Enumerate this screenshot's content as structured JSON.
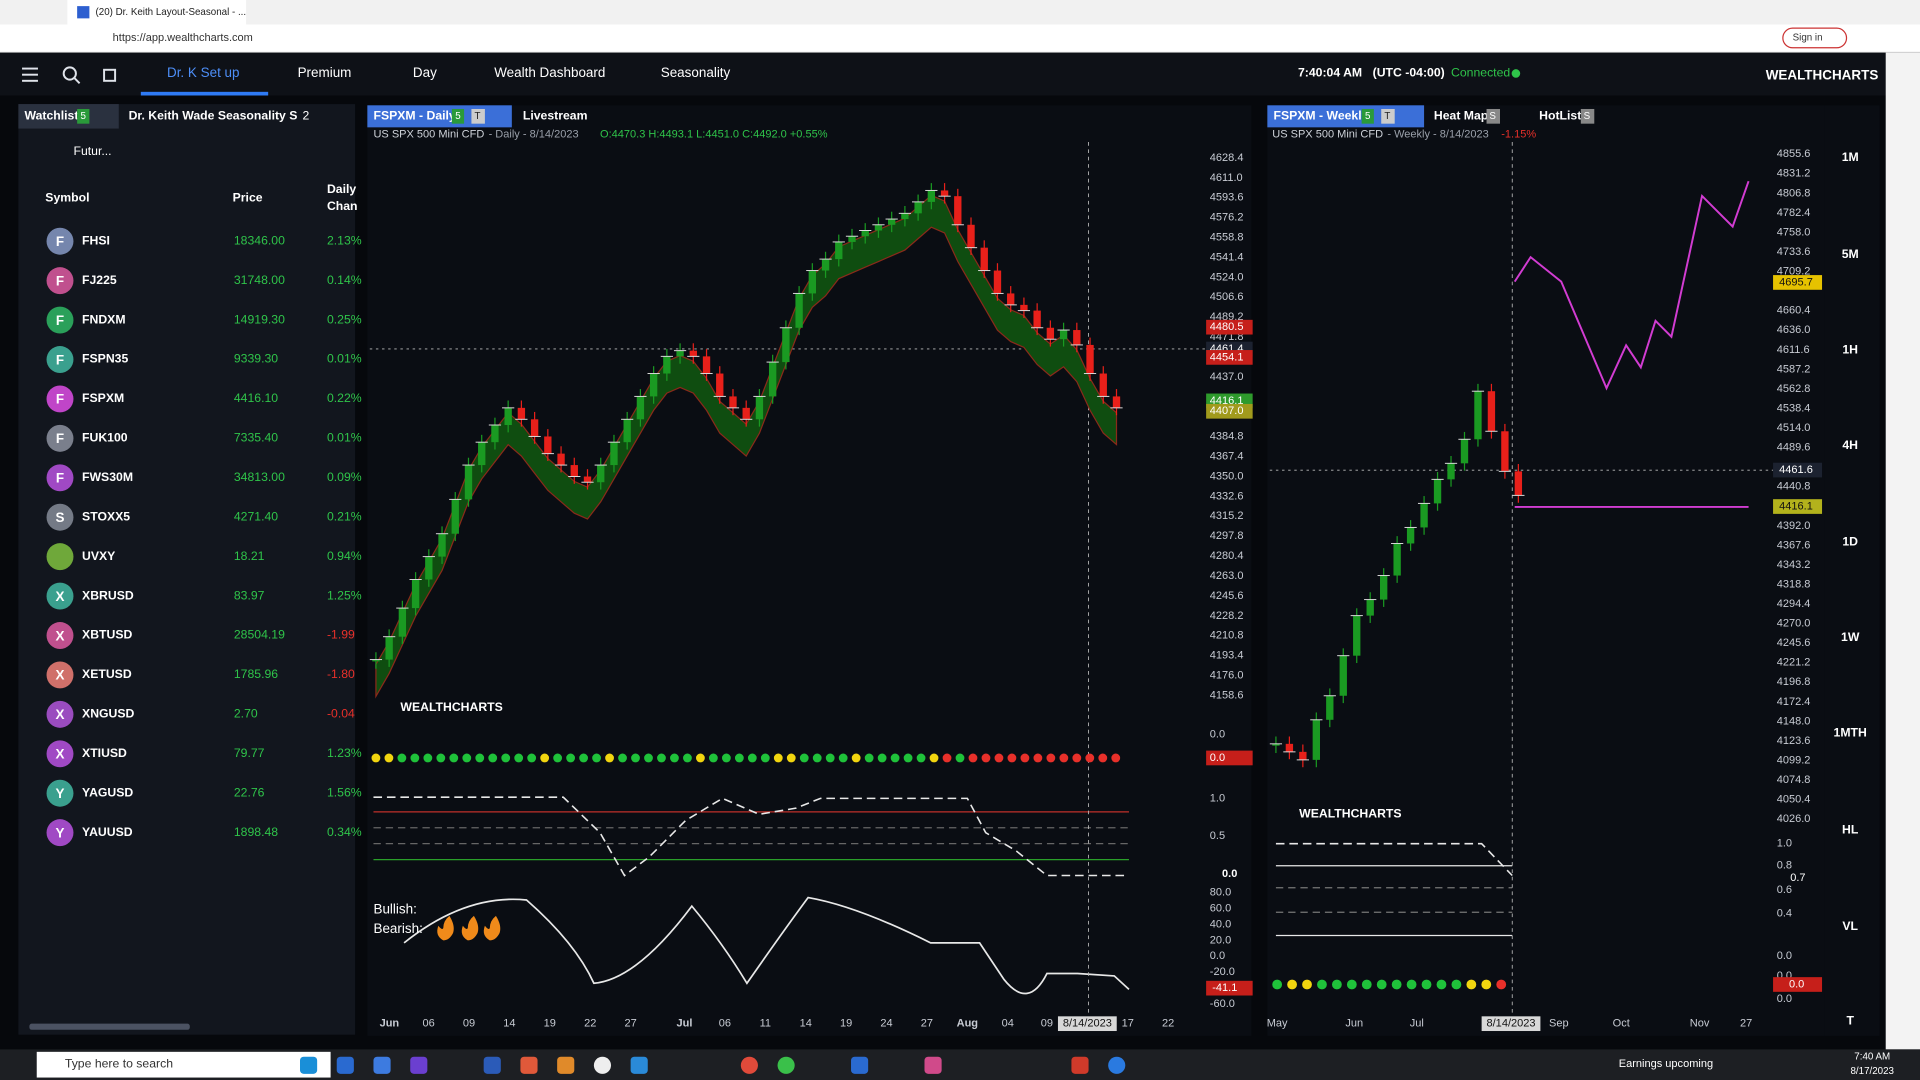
{
  "browser": {
    "tab_title": "(20) Dr. Keith Layout-Seasonal - ...",
    "url": "https://app.wealthcharts.com",
    "sign_in": "Sign in"
  },
  "nav": {
    "items": [
      "Dr. K Set up",
      "Premium",
      "Day",
      "Wealth Dashboard",
      "Seasonality"
    ],
    "time": "7:40:04 AM",
    "timezone": "(UTC -04:00)",
    "status": "Connected",
    "brand": "WEALTHCHARTS"
  },
  "watchlist": {
    "tab": "Watchlist",
    "tab_count": "5",
    "layout_name": "Dr. Keith Wade Seasonality S",
    "layout_count": "2",
    "filter": "Futur...",
    "columns": [
      "Symbol",
      "Price"
    ],
    "change_header": [
      "Daily",
      "Chan"
    ],
    "rows": [
      {
        "icon": "F",
        "icon_color": "#7586ad",
        "symbol": "FHSI",
        "price": "18346.00",
        "change": "2.13%"
      },
      {
        "icon": "F",
        "icon_color": "#c0508e",
        "symbol": "FJ225",
        "price": "31748.00",
        "change": "0.14%"
      },
      {
        "icon": "F",
        "icon_color": "#2aa05a",
        "symbol": "FNDXM",
        "price": "14919.30",
        "change": "0.25%"
      },
      {
        "icon": "F",
        "icon_color": "#3aa08e",
        "symbol": "FSPN35",
        "price": "9339.30",
        "change": "0.01%"
      },
      {
        "icon": "F",
        "icon_color": "#c045c8",
        "symbol": "FSPXM",
        "price": "4416.10",
        "change": "0.22%"
      },
      {
        "icon": "F",
        "icon_color": "#7a7f8c",
        "symbol": "FUK100",
        "price": "7335.40",
        "change": "0.01%"
      },
      {
        "icon": "F",
        "icon_color": "#a049c4",
        "symbol": "FWS30M",
        "price": "34813.00",
        "change": "0.09%"
      },
      {
        "icon": "S",
        "icon_color": "#747a86",
        "symbol": "STOXX5",
        "price": "4271.40",
        "change": "0.21%"
      },
      {
        "icon_color": "#6fa83a",
        "symbol": "UVXY",
        "price": "18.21",
        "change": "0.94%"
      },
      {
        "icon": "X",
        "icon_color": "#3aa08e",
        "symbol": "XBRUSD",
        "price": "83.97",
        "change": "1.25%"
      },
      {
        "icon": "X",
        "icon_color": "#c0508e",
        "symbol": "XBTUSD",
        "price": "28504.19",
        "change": "-1.99"
      },
      {
        "icon": "X",
        "icon_color": "#d0706a",
        "symbol": "XETUSD",
        "price": "1785.96",
        "change": "-1.80"
      },
      {
        "icon": "X",
        "icon_color": "#9a4cbf",
        "symbol": "XNGUSD",
        "price": "2.70",
        "change": "-0.04"
      },
      {
        "icon": "X",
        "icon_color": "#a049c4",
        "symbol": "XTIUSD",
        "price": "79.77",
        "change": "1.23%"
      },
      {
        "icon": "Y",
        "icon_color": "#3aa08e",
        "symbol": "YAGUSD",
        "price": "22.76",
        "change": "1.56%"
      },
      {
        "icon": "Y",
        "icon_color": "#a049c4",
        "symbol": "YAUUSD",
        "price": "1898.48",
        "change": "0.34%"
      }
    ]
  },
  "dot_colors": {
    "y": "#f2d50f",
    "g": "#1fc23a",
    "r": "#e8302a"
  },
  "left_chart": {
    "tab": "FSPXM - Daily",
    "tab_count": "5",
    "tab_t": "T",
    "tab2": "Livestream",
    "instrument": "US SPX 500 Mini CFD",
    "info": "- Daily - 8/14/2023",
    "ohlc": "O:4470.3 H:4493.1 L:4451.0 C:4492.0 +0.55%",
    "price_labels": [
      "4628.4",
      "4611.0",
      "4593.6",
      "4576.2",
      "4558.8",
      "4541.4",
      "4524.0",
      "4506.6",
      "4489.2",
      "4471.8",
      "4437.0",
      "4384.8",
      "4367.4",
      "4350.0",
      "4332.6",
      "4315.2",
      "4297.8",
      "4280.4",
      "4263.0",
      "4245.6",
      "4228.2",
      "4210.8",
      "4193.4",
      "4176.0",
      "4158.6"
    ],
    "price_tags": [
      {
        "label": "4480.5",
        "color": "#c61f1a"
      },
      {
        "label": "4461.4",
        "color": "#1c2230"
      },
      {
        "label": "4454.1",
        "color": "#c61f1a"
      },
      {
        "label": "4416.1",
        "color": "#2e9a2c"
      },
      {
        "label": "4407.0",
        "color": "#a19a1c"
      }
    ],
    "x_labels": [
      "Jun",
      "06",
      "09",
      "14",
      "19",
      "22",
      "27",
      "Jul",
      "06",
      "11",
      "14",
      "19",
      "24",
      "27",
      "Aug",
      "04",
      "09",
      "8/14/2023",
      "17",
      "22"
    ],
    "closes": [
      4190,
      4210,
      4235,
      4260,
      4280,
      4300,
      4330,
      4360,
      4380,
      4395,
      4410,
      4400,
      4385,
      4370,
      4360,
      4350,
      4345,
      4360,
      4380,
      4400,
      4420,
      4440,
      4455,
      4460,
      4455,
      4440,
      4420,
      4410,
      4400,
      4420,
      4450,
      4480,
      4510,
      4530,
      4540,
      4555,
      4560,
      4565,
      4570,
      4575,
      4580,
      4590,
      4600,
      4595,
      4570,
      4550,
      4530,
      4510,
      4500,
      4495,
      4480,
      4470,
      4478,
      4465,
      4440,
      4420,
      4410
    ],
    "watermark": "WEALTHCHARTS",
    "dots": "yygggggggggggyggggyggggggygggggyyggggygggggyrgrrrrrrrrrrrr",
    "pane1_label": "0.0",
    "pane1_tag": "0.0",
    "pane2_labels": [
      "1.0",
      "0.5"
    ],
    "pane2_tag": "0.0",
    "pane3_labels": [
      "80.0",
      "60.0",
      "40.0",
      "20.0",
      "0.0",
      "-20.0",
      "-60.0"
    ],
    "pane3_tag": "-41.1",
    "bullish": "Bullish:",
    "bearish": "Bearish:"
  },
  "right_chart": {
    "tab": "FSPXM - Weekly",
    "tab_count": "5",
    "tab_t": "T",
    "tab2": "Heat Map",
    "tab2_count": "S",
    "tab3": "HotList",
    "tab3_count": "S",
    "instrument": "US SPX 500 Mini CFD",
    "info": "- Weekly - 8/14/2023",
    "change": "-1.15%",
    "price_labels": [
      "4855.6",
      "4831.2",
      "4806.8",
      "4782.4",
      "4758.0",
      "4733.6",
      "4709.2",
      "4660.4",
      "4636.0",
      "4611.6",
      "4587.2",
      "4562.8",
      "4538.4",
      "4514.0",
      "4489.6",
      "4440.8",
      "4392.0",
      "4367.6",
      "4343.2",
      "4318.8",
      "4294.4",
      "4270.0",
      "4245.6",
      "4221.2",
      "4196.8",
      "4172.4",
      "4148.0",
      "4123.6",
      "4099.2",
      "4074.8",
      "4050.4",
      "4026.0"
    ],
    "price_tags": [
      {
        "label": "4695.7",
        "color": "#e6c200"
      },
      {
        "label": "4461.6",
        "color": "#1c2230"
      },
      {
        "label": "4416.1",
        "color": "#b3b21c"
      }
    ],
    "x_labels": [
      "May",
      "Jun",
      "Jul",
      "8/14/2023",
      "Sep",
      "Oct",
      "Nov",
      "27"
    ],
    "closes": [
      4120,
      4110,
      4100,
      4150,
      4180,
      4230,
      4280,
      4300,
      4330,
      4370,
      4390,
      4420,
      4450,
      4470,
      4500,
      4560,
      4510,
      4460,
      4430
    ],
    "watermark": "WEALTHCHARTS",
    "dots": "gyyggggggggggyyr",
    "pane_labels": [
      "1.0",
      "0.8",
      "0.6",
      "0.4",
      "0.0",
      "0.0",
      "0.0"
    ],
    "pane_tag": "0.7",
    "dots_tag": "0.0"
  },
  "timeframes": [
    "1M",
    "5M",
    "1H",
    "4H",
    "1D",
    "1W",
    "1MTH",
    "HL",
    "VL",
    "T"
  ],
  "taskbar": {
    "search": "Type here to search",
    "news": "Earnings upcoming",
    "time": "7:40 AM",
    "date": "8/17/2023"
  }
}
